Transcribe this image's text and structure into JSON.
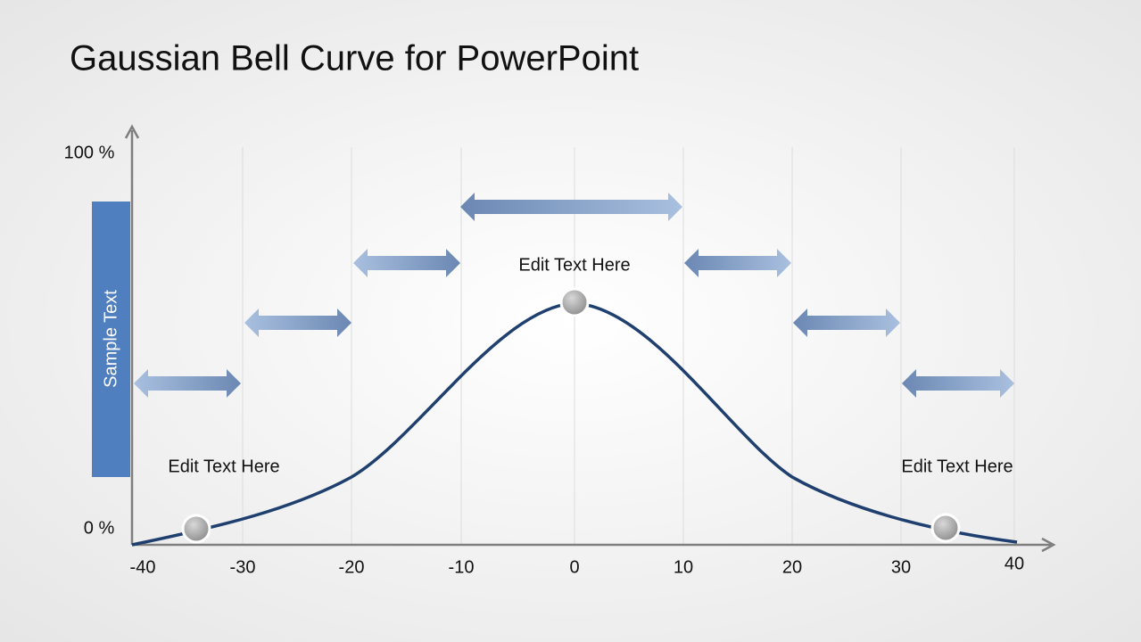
{
  "title": "Gaussian Bell Curve for PowerPoint",
  "y_axis": {
    "top_label": "100 %",
    "bottom_label": "0 %"
  },
  "x_axis": {
    "ticks": [
      -40,
      -30,
      -20,
      -10,
      0,
      10,
      20,
      30,
      40
    ]
  },
  "side_label": "Sample Text",
  "callouts": [
    "Edit Text Here",
    "Edit Text Here",
    "Edit Text Here"
  ]
}
